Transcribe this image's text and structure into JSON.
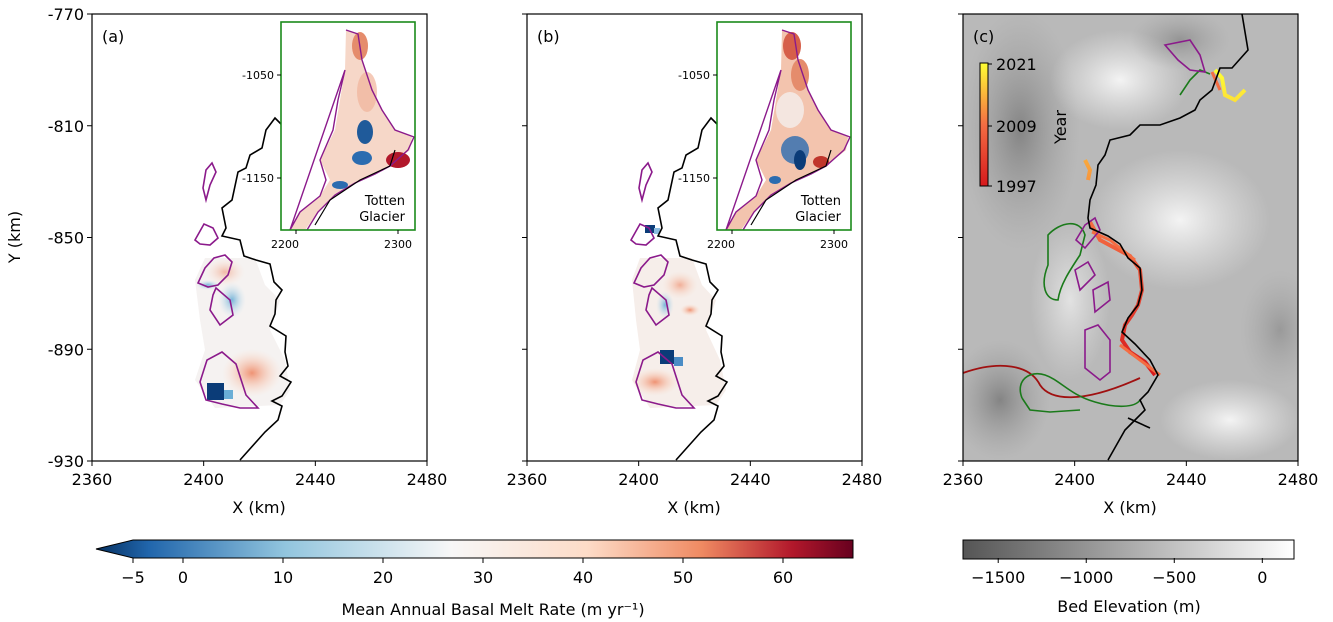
{
  "chart_data": [
    {
      "type": "heatmap",
      "panel_label": "(a)",
      "xlabel": "X (km)",
      "ylabel": "Y (km)",
      "xlim": [
        2360,
        2480
      ],
      "ylim": [
        -930,
        -770
      ],
      "xticks": [
        "2360",
        "2400",
        "2440",
        "2480"
      ],
      "yticks": [
        "-770",
        "-810",
        "-850",
        "-890",
        "-930"
      ],
      "inset": {
        "xticks": [
          "2200",
          "2300"
        ],
        "yticks": [
          "-1050",
          "-1150"
        ],
        "label_line1": "Totten",
        "label_line2": "Glacier"
      },
      "hotspots": [
        {
          "x": 2403,
          "y": -906,
          "melt": -5
        },
        {
          "x": 2418,
          "y": -898,
          "melt": 25
        },
        {
          "x": 2410,
          "y": -875,
          "melt": -2
        },
        {
          "x": 2400,
          "y": -866,
          "melt": 8
        }
      ]
    },
    {
      "type": "heatmap",
      "panel_label": "(b)",
      "xlabel": "X (km)",
      "xlim": [
        2360,
        2480
      ],
      "ylim": [
        -930,
        -770
      ],
      "xticks": [
        "2360",
        "2400",
        "2440",
        "2480"
      ],
      "inset": {
        "xticks": [
          "2200",
          "2300"
        ],
        "yticks": [
          "-1050",
          "-1150"
        ],
        "label_line1": "Totten",
        "label_line2": "Glacier"
      },
      "hotspots": [
        {
          "x": 2402,
          "y": -893,
          "melt": -5
        },
        {
          "x": 2402,
          "y": -848,
          "melt": -5
        },
        {
          "x": 2408,
          "y": -905,
          "melt": 20
        },
        {
          "x": 2405,
          "y": -870,
          "melt": 10
        }
      ]
    },
    {
      "type": "heatmap",
      "panel_label": "(c)",
      "xlabel": "X (km)",
      "xlim": [
        2360,
        2480
      ],
      "ylim": [
        -930,
        -770
      ],
      "xticks": [
        "2360",
        "2400",
        "2440",
        "2480"
      ],
      "year_colorbar": {
        "label": "Year",
        "ticks": [
          "2021",
          "2009",
          "1997"
        ],
        "range": [
          1997,
          2021
        ]
      }
    }
  ],
  "colorbars": {
    "melt": {
      "label": "Mean Annual Basal Melt Rate (m yr⁻¹)",
      "ticks": [
        "−5",
        "0",
        "10",
        "20",
        "30",
        "40",
        "50",
        "60"
      ],
      "range": [
        -5,
        67
      ],
      "extend": "min",
      "colormap": "RdBu_r"
    },
    "bed": {
      "label": "Bed Elevation (m)",
      "ticks": [
        "−1500",
        "−1000",
        "−500",
        "0"
      ],
      "range": [
        -1700,
        180
      ],
      "colormap": "gray"
    }
  },
  "colors": {
    "grounding_line": "#000000",
    "ice_shelf_outline": "#8b1a8b",
    "inset_frame": "#1a8a1a",
    "green_line": "#1a7a1a",
    "red_line": "#a01010"
  }
}
